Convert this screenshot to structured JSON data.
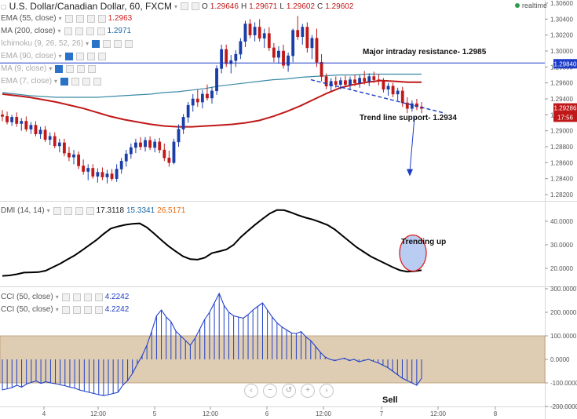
{
  "header": {
    "symbol_title": "U.S. Dollar/Canadian Dollar, 60, FXCM",
    "ohlc": {
      "o_label": "O",
      "o": "1.29646",
      "h_label": "H",
      "h": "1.29671",
      "l_label": "L",
      "l": "1.29602",
      "c_label": "C",
      "c": "1.29602"
    },
    "realtime_label": "realtime"
  },
  "indicators": [
    {
      "label": "EMA (55, close)",
      "value": "1.2963",
      "color": "#d11f1f"
    },
    {
      "label": "MA (200, close)",
      "value": "1.2971",
      "color": "#1f6aa5"
    },
    {
      "label": "Ichimoku (9, 26, 52, 26)",
      "value": "",
      "color": "#999999"
    },
    {
      "label": "EMA (90, close)",
      "value": "",
      "color": "#999999"
    },
    {
      "label": "MA (9, close)",
      "value": "",
      "color": "#999999"
    },
    {
      "label": "EMA (7, close)",
      "value": "",
      "color": "#999999"
    }
  ],
  "dmi_header": {
    "label": "DMI (14, 14)",
    "v1": "17.3118",
    "v2": "15.3341",
    "v3": "26.5171",
    "c1": "#222222",
    "c2": "#1f6aa5",
    "c3": "#e86a10"
  },
  "cci_headers": [
    {
      "label": "CCI (50, close)",
      "value": "4.2242",
      "color": "#1f3fc8"
    },
    {
      "label": "CCI (50, close)",
      "value": "4.2242",
      "color": "#1f3fc8"
    }
  ],
  "colors": {
    "up": "#1a3ea8",
    "down": "#c01818",
    "ema55": "#c01818",
    "ma200": "#3a8aa8",
    "resistance": "#1a3ac8",
    "trend": "#1a3ac8",
    "dmi": "#000000",
    "cci": "#1f3fc8",
    "band": "#dfcdb3",
    "bubble_fill": "#b9cdf2",
    "bubble_stroke": "#e02020"
  },
  "chart_data": [
    {
      "type": "candlestick",
      "title": "U.S. Dollar/Canadian Dollar, 60, FXCM",
      "ylim": [
        1.2818,
        1.3062
      ],
      "yticks": [
        1.306,
        1.304,
        1.302,
        1.3,
        1.298,
        1.296,
        1.294,
        1.292,
        1.29,
        1.288,
        1.286,
        1.284,
        1.282
      ],
      "ytick_labels": [
        "1.30600",
        "1.30400",
        "1.30200",
        "1.30000",
        "1.29800",
        "1.29600",
        "1.29400",
        "1.29200",
        "1.29000",
        "1.28800",
        "1.28600",
        "1.28400",
        "1.28200"
      ],
      "x_ticks": [
        "4",
        "12:00",
        "5",
        "12:00",
        "6",
        "12:00",
        "7",
        "12:00",
        "8"
      ],
      "n_bars": 89,
      "ohlc": [
        [
          1.292,
          1.2926,
          1.2912,
          1.2918
        ],
        [
          1.2918,
          1.2924,
          1.2908,
          1.2911
        ],
        [
          1.2911,
          1.292,
          1.2906,
          1.2917
        ],
        [
          1.2917,
          1.2923,
          1.2905,
          1.2909
        ],
        [
          1.2909,
          1.2916,
          1.29,
          1.2912
        ],
        [
          1.2912,
          1.2918,
          1.2899,
          1.2902
        ],
        [
          1.2902,
          1.2911,
          1.2896,
          1.2907
        ],
        [
          1.2907,
          1.2912,
          1.2893,
          1.2896
        ],
        [
          1.2896,
          1.2905,
          1.289,
          1.2901
        ],
        [
          1.2901,
          1.2906,
          1.2886,
          1.2889
        ],
        [
          1.2889,
          1.2898,
          1.2882,
          1.2893
        ],
        [
          1.2893,
          1.2898,
          1.2878,
          1.2881
        ],
        [
          1.2881,
          1.289,
          1.2873,
          1.2885
        ],
        [
          1.2885,
          1.289,
          1.2868,
          1.2872
        ],
        [
          1.2872,
          1.288,
          1.2862,
          1.2867
        ],
        [
          1.2867,
          1.2876,
          1.2858,
          1.287
        ],
        [
          1.287,
          1.2874,
          1.2852,
          1.2856
        ],
        [
          1.2856,
          1.2864,
          1.2845,
          1.2849
        ],
        [
          1.2849,
          1.2858,
          1.2838,
          1.2853
        ],
        [
          1.2853,
          1.2858,
          1.284,
          1.2843
        ],
        [
          1.2843,
          1.2853,
          1.2835,
          1.2848
        ],
        [
          1.2848,
          1.2854,
          1.2838,
          1.2842
        ],
        [
          1.2842,
          1.2851,
          1.2834,
          1.2846
        ],
        [
          1.2846,
          1.2852,
          1.2837,
          1.284
        ],
        [
          1.284,
          1.2858,
          1.2836,
          1.2852
        ],
        [
          1.2852,
          1.2866,
          1.2846,
          1.2862
        ],
        [
          1.2862,
          1.2876,
          1.2855,
          1.2871
        ],
        [
          1.2871,
          1.2884,
          1.2865,
          1.2879
        ],
        [
          1.2879,
          1.289,
          1.2872,
          1.2885
        ],
        [
          1.2885,
          1.2892,
          1.2876,
          1.288
        ],
        [
          1.288,
          1.2892,
          1.2874,
          1.2888
        ],
        [
          1.2888,
          1.2893,
          1.2876,
          1.2879
        ],
        [
          1.2879,
          1.289,
          1.2873,
          1.2886
        ],
        [
          1.2886,
          1.2891,
          1.2872,
          1.2876
        ],
        [
          1.2876,
          1.2884,
          1.2862,
          1.2866
        ],
        [
          1.2866,
          1.2875,
          1.2855,
          1.286
        ],
        [
          1.286,
          1.289,
          1.2858,
          1.2886
        ],
        [
          1.2886,
          1.2908,
          1.288,
          1.2902
        ],
        [
          1.2902,
          1.2921,
          1.2896,
          1.2917
        ],
        [
          1.2917,
          1.2936,
          1.291,
          1.2932
        ],
        [
          1.2932,
          1.2946,
          1.2924,
          1.294
        ],
        [
          1.294,
          1.2952,
          1.293,
          1.2936
        ],
        [
          1.2936,
          1.2951,
          1.2928,
          1.2946
        ],
        [
          1.2946,
          1.2958,
          1.2938,
          1.2941
        ],
        [
          1.2941,
          1.2955,
          1.2934,
          1.295
        ],
        [
          1.295,
          1.2982,
          1.2945,
          1.2978
        ],
        [
          1.2978,
          1.3008,
          1.2972,
          1.3002
        ],
        [
          1.3002,
          1.3008,
          1.298,
          1.2984
        ],
        [
          1.2984,
          1.2995,
          1.2972,
          1.2988
        ],
        [
          1.2988,
          1.3001,
          1.298,
          1.2996
        ],
        [
          1.2996,
          1.3016,
          1.299,
          1.3012
        ],
        [
          1.3012,
          1.3038,
          1.3005,
          1.3034
        ],
        [
          1.3034,
          1.304,
          1.3016,
          1.302
        ],
        [
          1.302,
          1.3036,
          1.3012,
          1.303
        ],
        [
          1.303,
          1.304,
          1.3012,
          1.3016
        ],
        [
          1.3016,
          1.3028,
          1.3004,
          1.3022
        ],
        [
          1.3022,
          1.303,
          1.3,
          1.3004
        ],
        [
          1.3004,
          1.301,
          1.2986,
          1.2992
        ],
        [
          1.2992,
          1.3006,
          1.2984,
          1.3
        ],
        [
          1.3,
          1.3008,
          1.2978,
          1.2982
        ],
        [
          1.2982,
          1.2998,
          1.2974,
          1.2994
        ],
        [
          1.2994,
          1.3028,
          1.2986,
          1.3026
        ],
        [
          1.3026,
          1.3044,
          1.3014,
          1.3018
        ],
        [
          1.3018,
          1.3034,
          1.3008,
          1.303
        ],
        [
          1.303,
          1.3036,
          1.2998,
          1.3004
        ],
        [
          1.3004,
          1.302,
          1.299,
          1.3016
        ],
        [
          1.3016,
          1.3028,
          1.298,
          1.2986
        ],
        [
          1.2986,
          1.2996,
          1.2962,
          1.2968
        ],
        [
          1.2968,
          1.2972,
          1.2952,
          1.2956
        ],
        [
          1.2956,
          1.2966,
          1.295,
          1.2962
        ],
        [
          1.2962,
          1.2968,
          1.2954,
          1.2958
        ],
        [
          1.2958,
          1.2967,
          1.2952,
          1.2963
        ],
        [
          1.2963,
          1.2969,
          1.2955,
          1.2958
        ],
        [
          1.2958,
          1.2968,
          1.2952,
          1.2964
        ],
        [
          1.2964,
          1.297,
          1.2956,
          1.296
        ],
        [
          1.296,
          1.297,
          1.2954,
          1.2966
        ],
        [
          1.2966,
          1.2975,
          1.2958,
          1.2962
        ],
        [
          1.2962,
          1.2972,
          1.2956,
          1.2968
        ],
        [
          1.2968,
          1.2974,
          1.296,
          1.2964
        ],
        [
          1.2964,
          1.2971,
          1.2957,
          1.2962
        ],
        [
          1.2962,
          1.2966,
          1.2948,
          1.2952
        ],
        [
          1.2952,
          1.296,
          1.2944,
          1.2956
        ],
        [
          1.2956,
          1.296,
          1.2942,
          1.2946
        ],
        [
          1.2946,
          1.2954,
          1.2938,
          1.295
        ],
        [
          1.295,
          1.2955,
          1.293,
          1.2935
        ],
        [
          1.2935,
          1.2942,
          1.2922,
          1.2928
        ],
        [
          1.2928,
          1.2938,
          1.2924,
          1.2934
        ],
        [
          1.2934,
          1.294,
          1.2926,
          1.293
        ],
        [
          1.293,
          1.2936,
          1.2922,
          1.2928
        ]
      ],
      "series": [
        {
          "name": "EMA (55, close)",
          "x_start": 0,
          "values": [
            1.2946,
            1.2944,
            1.2942,
            1.2939,
            1.2936,
            1.2932,
            1.2928,
            1.2923,
            1.2918,
            1.2914,
            1.2911,
            1.2908,
            1.2906,
            1.2905,
            1.2905,
            1.2906,
            1.2907,
            1.2908,
            1.291,
            1.2913,
            1.2918,
            1.2924,
            1.2931,
            1.2939,
            1.2947,
            1.2954,
            1.2958,
            1.2961,
            1.2963,
            1.2962,
            1.2961,
            1.2961
          ]
        },
        {
          "name": "MA (200, close)",
          "x_start": 0,
          "values": [
            1.2948,
            1.2946,
            1.2944,
            1.2943,
            1.2942,
            1.2942,
            1.2942,
            1.2942,
            1.2943,
            1.2944,
            1.2945,
            1.2946,
            1.2948,
            1.2949,
            1.2951,
            1.2953,
            1.2956,
            1.2958,
            1.296,
            1.2962,
            1.2964,
            1.2965,
            1.2967,
            1.2968,
            1.2969,
            1.297,
            1.297,
            1.2971,
            1.2971,
            1.2971,
            1.2971,
            1.2971
          ]
        }
      ],
      "annotations": [
        {
          "text": "Major intraday resistance- 1.2985",
          "level": 1.2985
        },
        {
          "text": "Trend line support- 1.2934",
          "level": 1.2934
        }
      ],
      "price_badges": [
        {
          "text": "1.29840",
          "value": 1.2984,
          "color": "#1a3ac8"
        },
        {
          "text": "1.29286",
          "value": 1.29286,
          "color": "#c01818"
        },
        {
          "text": "17:56",
          "value": 1.2917,
          "color": "#c01818"
        }
      ]
    },
    {
      "type": "line",
      "title": "DMI (14, 14)",
      "ylim": [
        14,
        46
      ],
      "yticks": [
        20,
        30,
        40
      ],
      "ytick_labels": [
        "20.0000",
        "30.0000",
        "40.0000"
      ],
      "values": [
        16.8,
        17.0,
        17.5,
        18.2,
        18.3,
        18.4,
        19.0,
        20.5,
        22.0,
        23.8,
        25.5,
        27.6,
        29.8,
        32.0,
        34.6,
        36.9,
        37.8,
        38.5,
        38.9,
        39.1,
        37.4,
        34.8,
        32.0,
        29.4,
        27.2,
        25.1,
        23.9,
        23.7,
        24.5,
        26.5,
        27.2,
        28.0,
        30.0,
        33.3,
        36.0,
        38.6,
        41.0,
        43.3,
        44.8,
        44.7,
        43.7,
        42.5,
        41.5,
        40.7,
        39.6,
        38.4,
        36.5,
        34.0,
        31.5,
        29.0,
        27.0,
        25.0,
        23.5,
        22.0,
        20.5,
        19.2,
        18.6,
        18.8,
        19.2
      ],
      "annotation": "Trending up"
    },
    {
      "type": "bar",
      "title": "CCI (50, close)",
      "ylim": [
        -200,
        300
      ],
      "yticks": [
        -200,
        -100,
        0,
        100,
        200,
        300
      ],
      "ytick_labels": [
        "-200.0000",
        "-100.0000",
        "0.0000",
        "100.0000",
        "200.0000",
        "300.0000"
      ],
      "band": [
        -100,
        100
      ],
      "values": [
        -130,
        -125,
        -120,
        -110,
        -118,
        -105,
        -98,
        -92,
        -102,
        -95,
        -100,
        -103,
        -108,
        -112,
        -118,
        -122,
        -130,
        -135,
        -140,
        -145,
        -150,
        -154,
        -150,
        -145,
        -140,
        -110,
        -90,
        -60,
        -20,
        15,
        60,
        120,
        185,
        210,
        180,
        160,
        120,
        100,
        80,
        60,
        90,
        130,
        170,
        200,
        240,
        280,
        230,
        200,
        185,
        180,
        175,
        190,
        210,
        225,
        240,
        210,
        180,
        155,
        138,
        125,
        112,
        110,
        118,
        95,
        80,
        55,
        30,
        10,
        0,
        -5,
        0,
        5,
        -5,
        0,
        -10,
        -5,
        0,
        -8,
        -15,
        -25,
        -35,
        -50,
        -65,
        -80,
        -90,
        -100,
        -110,
        -80
      ]
    }
  ],
  "annotations": {
    "resistance_label": "Major intraday resistance- 1.2985",
    "support_label": "Trend line support- 1.2934",
    "trending_label": "Trending up",
    "sell_label": "Sell"
  },
  "x_axis": {
    "labels": [
      "4",
      "12:00",
      "5",
      "12:00",
      "6",
      "12:00",
      "7",
      "12:00",
      "8"
    ]
  },
  "price_axis": {
    "main_ticks": [
      "1.30600",
      "1.30400",
      "1.30200",
      "1.30000",
      "1.29800",
      "1.29600",
      "1.29400",
      "1.29200",
      "1.29000",
      "1.28800",
      "1.28600",
      "1.28400",
      "1.28200"
    ],
    "badge_resistance": "1.29840",
    "badge_last": "1.29286",
    "badge_time": "17:56"
  },
  "zoom_controls": [
    {
      "name": "scroll-left-button",
      "glyph": "‹"
    },
    {
      "name": "zoom-out-button",
      "glyph": "−"
    },
    {
      "name": "reset-button",
      "glyph": "↺"
    },
    {
      "name": "zoom-in-button",
      "glyph": "+"
    },
    {
      "name": "scroll-right-button",
      "glyph": "›"
    }
  ]
}
